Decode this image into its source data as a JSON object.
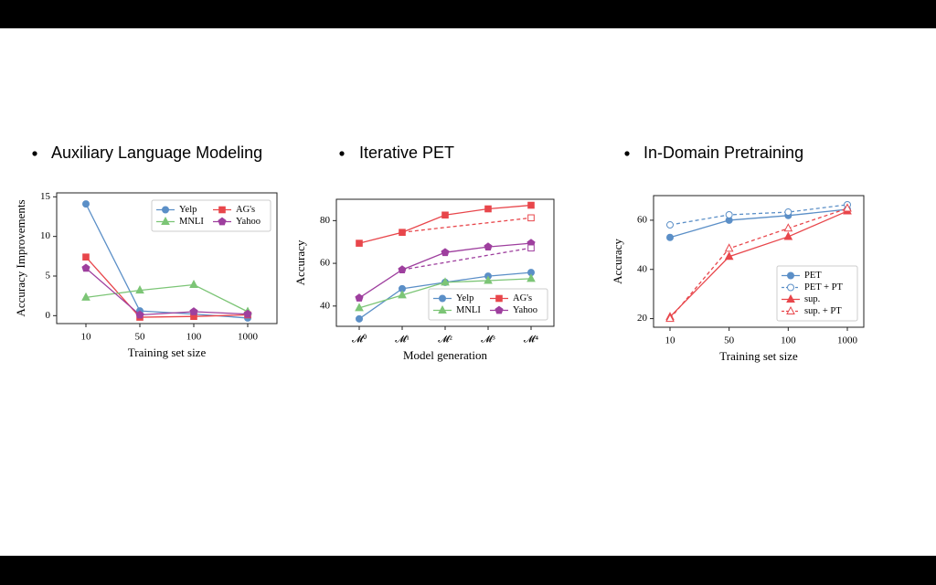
{
  "chart_data": [
    {
      "type": "line",
      "title": "Auxiliary Language Modeling",
      "xlabel": "Training set size",
      "ylabel": "Accuracy Improvements",
      "categories": [
        "10",
        "50",
        "100",
        "1000"
      ],
      "ylim": [
        -1,
        15.5
      ],
      "yticks": [
        0,
        5,
        10,
        15
      ],
      "legend": "upper right",
      "legend_columns": 2,
      "series": [
        {
          "name": "Yelp",
          "color": "#5b8fc7",
          "marker": "circle",
          "values": [
            14.1,
            0.6,
            0.2,
            -0.3
          ]
        },
        {
          "name": "AG's",
          "color": "#e8464b",
          "marker": "square",
          "values": [
            7.4,
            -0.2,
            -0.1,
            0.1
          ]
        },
        {
          "name": "MNLI",
          "color": "#7cc576",
          "marker": "triangle",
          "values": [
            2.3,
            3.2,
            3.9,
            0.5
          ]
        },
        {
          "name": "Yahoo",
          "color": "#9e3f9e",
          "marker": "pentagon",
          "values": [
            6.0,
            0.1,
            0.5,
            0.2
          ]
        }
      ]
    },
    {
      "type": "line",
      "title": "Iterative PET",
      "xlabel": "Model generation",
      "ylabel": "Accuracy",
      "categories": [
        "𝓜⁰",
        "𝓜¹",
        "𝓜²",
        "𝓜³",
        "𝓜⁴"
      ],
      "ylim": [
        30.5,
        90
      ],
      "yticks": [
        40,
        60,
        80
      ],
      "legend": "lower right",
      "legend_columns": 2,
      "series": [
        {
          "name": "Yelp",
          "color": "#5b8fc7",
          "marker": "circle",
          "values": [
            34,
            48.1,
            51.1,
            54,
            55.7
          ]
        },
        {
          "name": "AG's",
          "color": "#e8464b",
          "marker": "square",
          "values": [
            69.4,
            74.5,
            82.6,
            85.5,
            87.2
          ]
        },
        {
          "name": "MNLI",
          "color": "#7cc576",
          "marker": "triangle",
          "values": [
            39.1,
            45.1,
            51.1,
            51.9,
            52.8
          ]
        },
        {
          "name": "Yahoo",
          "color": "#9e3f9e",
          "marker": "pentagon",
          "values": [
            43.8,
            57,
            65.1,
            67.7,
            69.4
          ]
        },
        {
          "color": "#e8464b",
          "marker": "square",
          "dashed": true,
          "open": true,
          "markers": "last",
          "values": [
            null,
            74.5,
            76.8,
            79,
            81.3
          ]
        },
        {
          "color": "#9e3f9e",
          "marker": "square",
          "dashed": true,
          "open": true,
          "markers": "last",
          "values": [
            null,
            57,
            60.4,
            63.8,
            67.2
          ]
        }
      ]
    },
    {
      "type": "line",
      "title": "In-Domain Pretraining",
      "xlabel": "Training set size",
      "ylabel": "Accuracy",
      "categories": [
        "10",
        "50",
        "100",
        "1000"
      ],
      "ylim": [
        16.5,
        70
      ],
      "yticks": [
        20,
        40,
        60
      ],
      "legend": "lower right",
      "legend_columns": 1,
      "series": [
        {
          "name": "PET",
          "color": "#5b8fc7",
          "marker": "circle",
          "values": [
            53,
            60,
            61.9,
            64.4
          ]
        },
        {
          "name": "PET + PT",
          "color": "#5b8fc7",
          "marker": "circle",
          "dashed": true,
          "open": true,
          "values": [
            58.1,
            62.2,
            63.3,
            66.3
          ]
        },
        {
          "name": "sup.",
          "color": "#e8464b",
          "marker": "triangle",
          "values": [
            20.7,
            45.2,
            53.3,
            63.7
          ]
        },
        {
          "name": "sup. + PT",
          "color": "#e8464b",
          "marker": "triangle",
          "dashed": true,
          "open": true,
          "values": [
            20,
            48.5,
            56.7,
            64.8
          ]
        }
      ]
    }
  ]
}
